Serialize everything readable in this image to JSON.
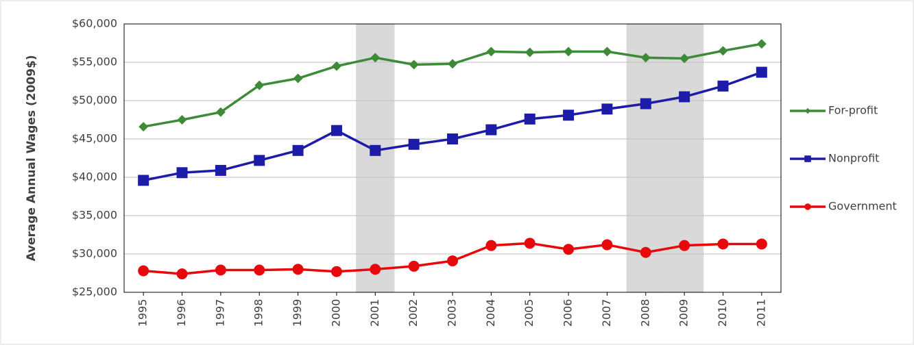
{
  "chart_data": {
    "type": "line",
    "y_label": "Average Annual Wages (2009$)",
    "categories": [
      "1995",
      "1996",
      "1997",
      "1998",
      "1999",
      "2000",
      "2001",
      "2002",
      "2003",
      "2004",
      "2005",
      "2006",
      "2007",
      "2008",
      "2009",
      "2010",
      "2011"
    ],
    "shaded": [
      "2001",
      "2008",
      "2009"
    ],
    "series": [
      {
        "name": "For-profit",
        "color": "#3d8b37",
        "marker": "diamond",
        "values": [
          46600,
          47500,
          48500,
          52000,
          52900,
          54500,
          55600,
          54700,
          54800,
          56400,
          56300,
          56400,
          56400,
          55600,
          55500,
          56500,
          57400
        ]
      },
      {
        "name": "Nonprofit",
        "color": "#1c1ca8",
        "marker": "square",
        "values": [
          39600,
          40600,
          40900,
          42200,
          43500,
          46100,
          43500,
          44300,
          45000,
          46200,
          47600,
          48100,
          48900,
          49600,
          50500,
          51900,
          53700
        ]
      },
      {
        "name": "Government",
        "color": "#e8080c",
        "marker": "circle",
        "values": [
          27800,
          27400,
          27900,
          27900,
          28000,
          27700,
          28000,
          28400,
          29100,
          31100,
          31400,
          30600,
          31200,
          30200,
          31100,
          31300,
          31300
        ]
      }
    ],
    "ylim": [
      25000,
      60000
    ],
    "yticks": [
      {
        "value": 25000,
        "label": "$25,000"
      },
      {
        "value": 30000,
        "label": "$30,000"
      },
      {
        "value": 35000,
        "label": "$35,000"
      },
      {
        "value": 40000,
        "label": "$40,000"
      },
      {
        "value": 45000,
        "label": "$45,000"
      },
      {
        "value": 50000,
        "label": "$50,000"
      },
      {
        "value": 55000,
        "label": "$55,000"
      },
      {
        "value": 60000,
        "label": "$60,000"
      }
    ],
    "grid": true,
    "legend": "right"
  }
}
